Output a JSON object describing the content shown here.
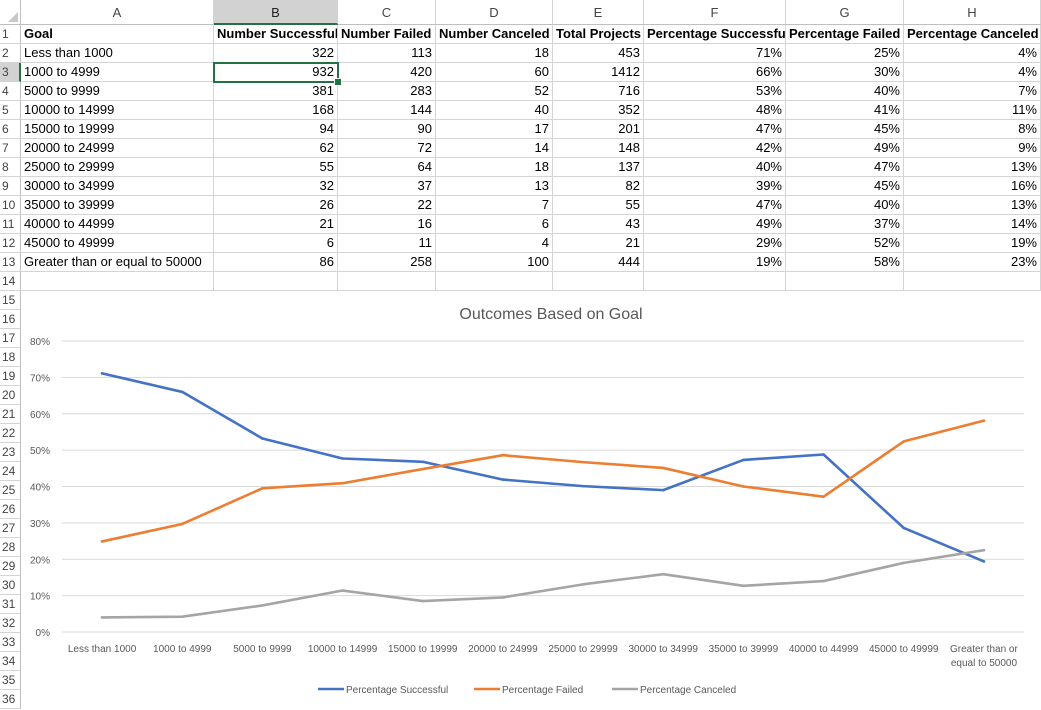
{
  "columns": [
    "A",
    "B",
    "C",
    "D",
    "E",
    "F",
    "G",
    "H"
  ],
  "selected_column": "B",
  "selected_row": 3,
  "row_numbers": [
    "1",
    "2",
    "3",
    "4",
    "5",
    "6",
    "7",
    "8",
    "9",
    "10",
    "11",
    "12",
    "13",
    "14",
    "15",
    "16",
    "17",
    "18",
    "19",
    "20",
    "21",
    "22",
    "23",
    "24",
    "25",
    "26",
    "27",
    "28",
    "29",
    "30",
    "31",
    "32",
    "33",
    "34",
    "35",
    "36"
  ],
  "table": {
    "headers": [
      "Goal",
      "Number Successful",
      "Number Failed",
      "Number Canceled",
      "Total Projects",
      "Percentage Successful",
      "Percentage Failed",
      "Percentage Canceled"
    ],
    "rows": [
      [
        "Less than 1000",
        "322",
        "113",
        "18",
        "453",
        "71%",
        "25%",
        "4%"
      ],
      [
        "1000 to 4999",
        "932",
        "420",
        "60",
        "1412",
        "66%",
        "30%",
        "4%"
      ],
      [
        "5000 to 9999",
        "381",
        "283",
        "52",
        "716",
        "53%",
        "40%",
        "7%"
      ],
      [
        "10000 to 14999",
        "168",
        "144",
        "40",
        "352",
        "48%",
        "41%",
        "11%"
      ],
      [
        "15000 to 19999",
        "94",
        "90",
        "17",
        "201",
        "47%",
        "45%",
        "8%"
      ],
      [
        "20000 to 24999",
        "62",
        "72",
        "14",
        "148",
        "42%",
        "49%",
        "9%"
      ],
      [
        "25000 to 29999",
        "55",
        "64",
        "18",
        "137",
        "40%",
        "47%",
        "13%"
      ],
      [
        "30000 to 34999",
        "32",
        "37",
        "13",
        "82",
        "39%",
        "45%",
        "16%"
      ],
      [
        "35000 to 39999",
        "26",
        "22",
        "7",
        "55",
        "47%",
        "40%",
        "13%"
      ],
      [
        "40000 to 44999",
        "21",
        "16",
        "6",
        "43",
        "49%",
        "37%",
        "14%"
      ],
      [
        "45000 to 49999",
        "6",
        "11",
        "4",
        "21",
        "29%",
        "52%",
        "19%"
      ],
      [
        "Greater than or equal to 50000",
        "86",
        "258",
        "100",
        "444",
        "19%",
        "58%",
        "23%"
      ]
    ]
  },
  "chart_data": {
    "type": "line",
    "title": "Outcomes Based on Goal",
    "categories": [
      "Less than 1000",
      "1000 to 4999",
      "5000 to 9999",
      "10000 to 14999",
      "15000 to 19999",
      "20000 to 24999",
      "25000 to 29999",
      "30000 to 34999",
      "35000 to 39999",
      "40000 to 44999",
      "45000 to 49999",
      "Greater than or equal to 50000"
    ],
    "category_lines": [
      [
        "Less than 1000"
      ],
      [
        "1000 to 4999"
      ],
      [
        "5000 to 9999"
      ],
      [
        "10000 to 14999"
      ],
      [
        "15000 to 19999"
      ],
      [
        "20000 to 24999"
      ],
      [
        "25000 to 29999"
      ],
      [
        "30000 to 34999"
      ],
      [
        "35000 to 39999"
      ],
      [
        "40000 to 44999"
      ],
      [
        "45000 to 49999"
      ],
      [
        "Greater than or",
        "equal to 50000"
      ]
    ],
    "yticks": [
      "0%",
      "10%",
      "20%",
      "30%",
      "40%",
      "50%",
      "60%",
      "70%",
      "80%"
    ],
    "ylim": [
      0,
      80
    ],
    "grid": true,
    "legend_position": "bottom",
    "series": [
      {
        "name": "Percentage Successful",
        "color": "#4472c4",
        "values": [
          71.1,
          66.0,
          53.2,
          47.7,
          46.8,
          41.9,
          40.1,
          39.0,
          47.3,
          48.8,
          28.6,
          19.4
        ]
      },
      {
        "name": "Percentage Failed",
        "color": "#ed7d31",
        "values": [
          24.9,
          29.7,
          39.5,
          40.9,
          44.8,
          48.6,
          46.7,
          45.1,
          40.0,
          37.2,
          52.4,
          58.1
        ]
      },
      {
        "name": "Percentage Canceled",
        "color": "#a5a5a5",
        "values": [
          4.0,
          4.2,
          7.3,
          11.4,
          8.5,
          9.5,
          13.1,
          15.9,
          12.7,
          14.0,
          19.0,
          22.5
        ]
      }
    ]
  },
  "colors": {
    "gridline": "#d9d9d9",
    "selection": "#217346",
    "header_selected": "#d2d2d2"
  }
}
